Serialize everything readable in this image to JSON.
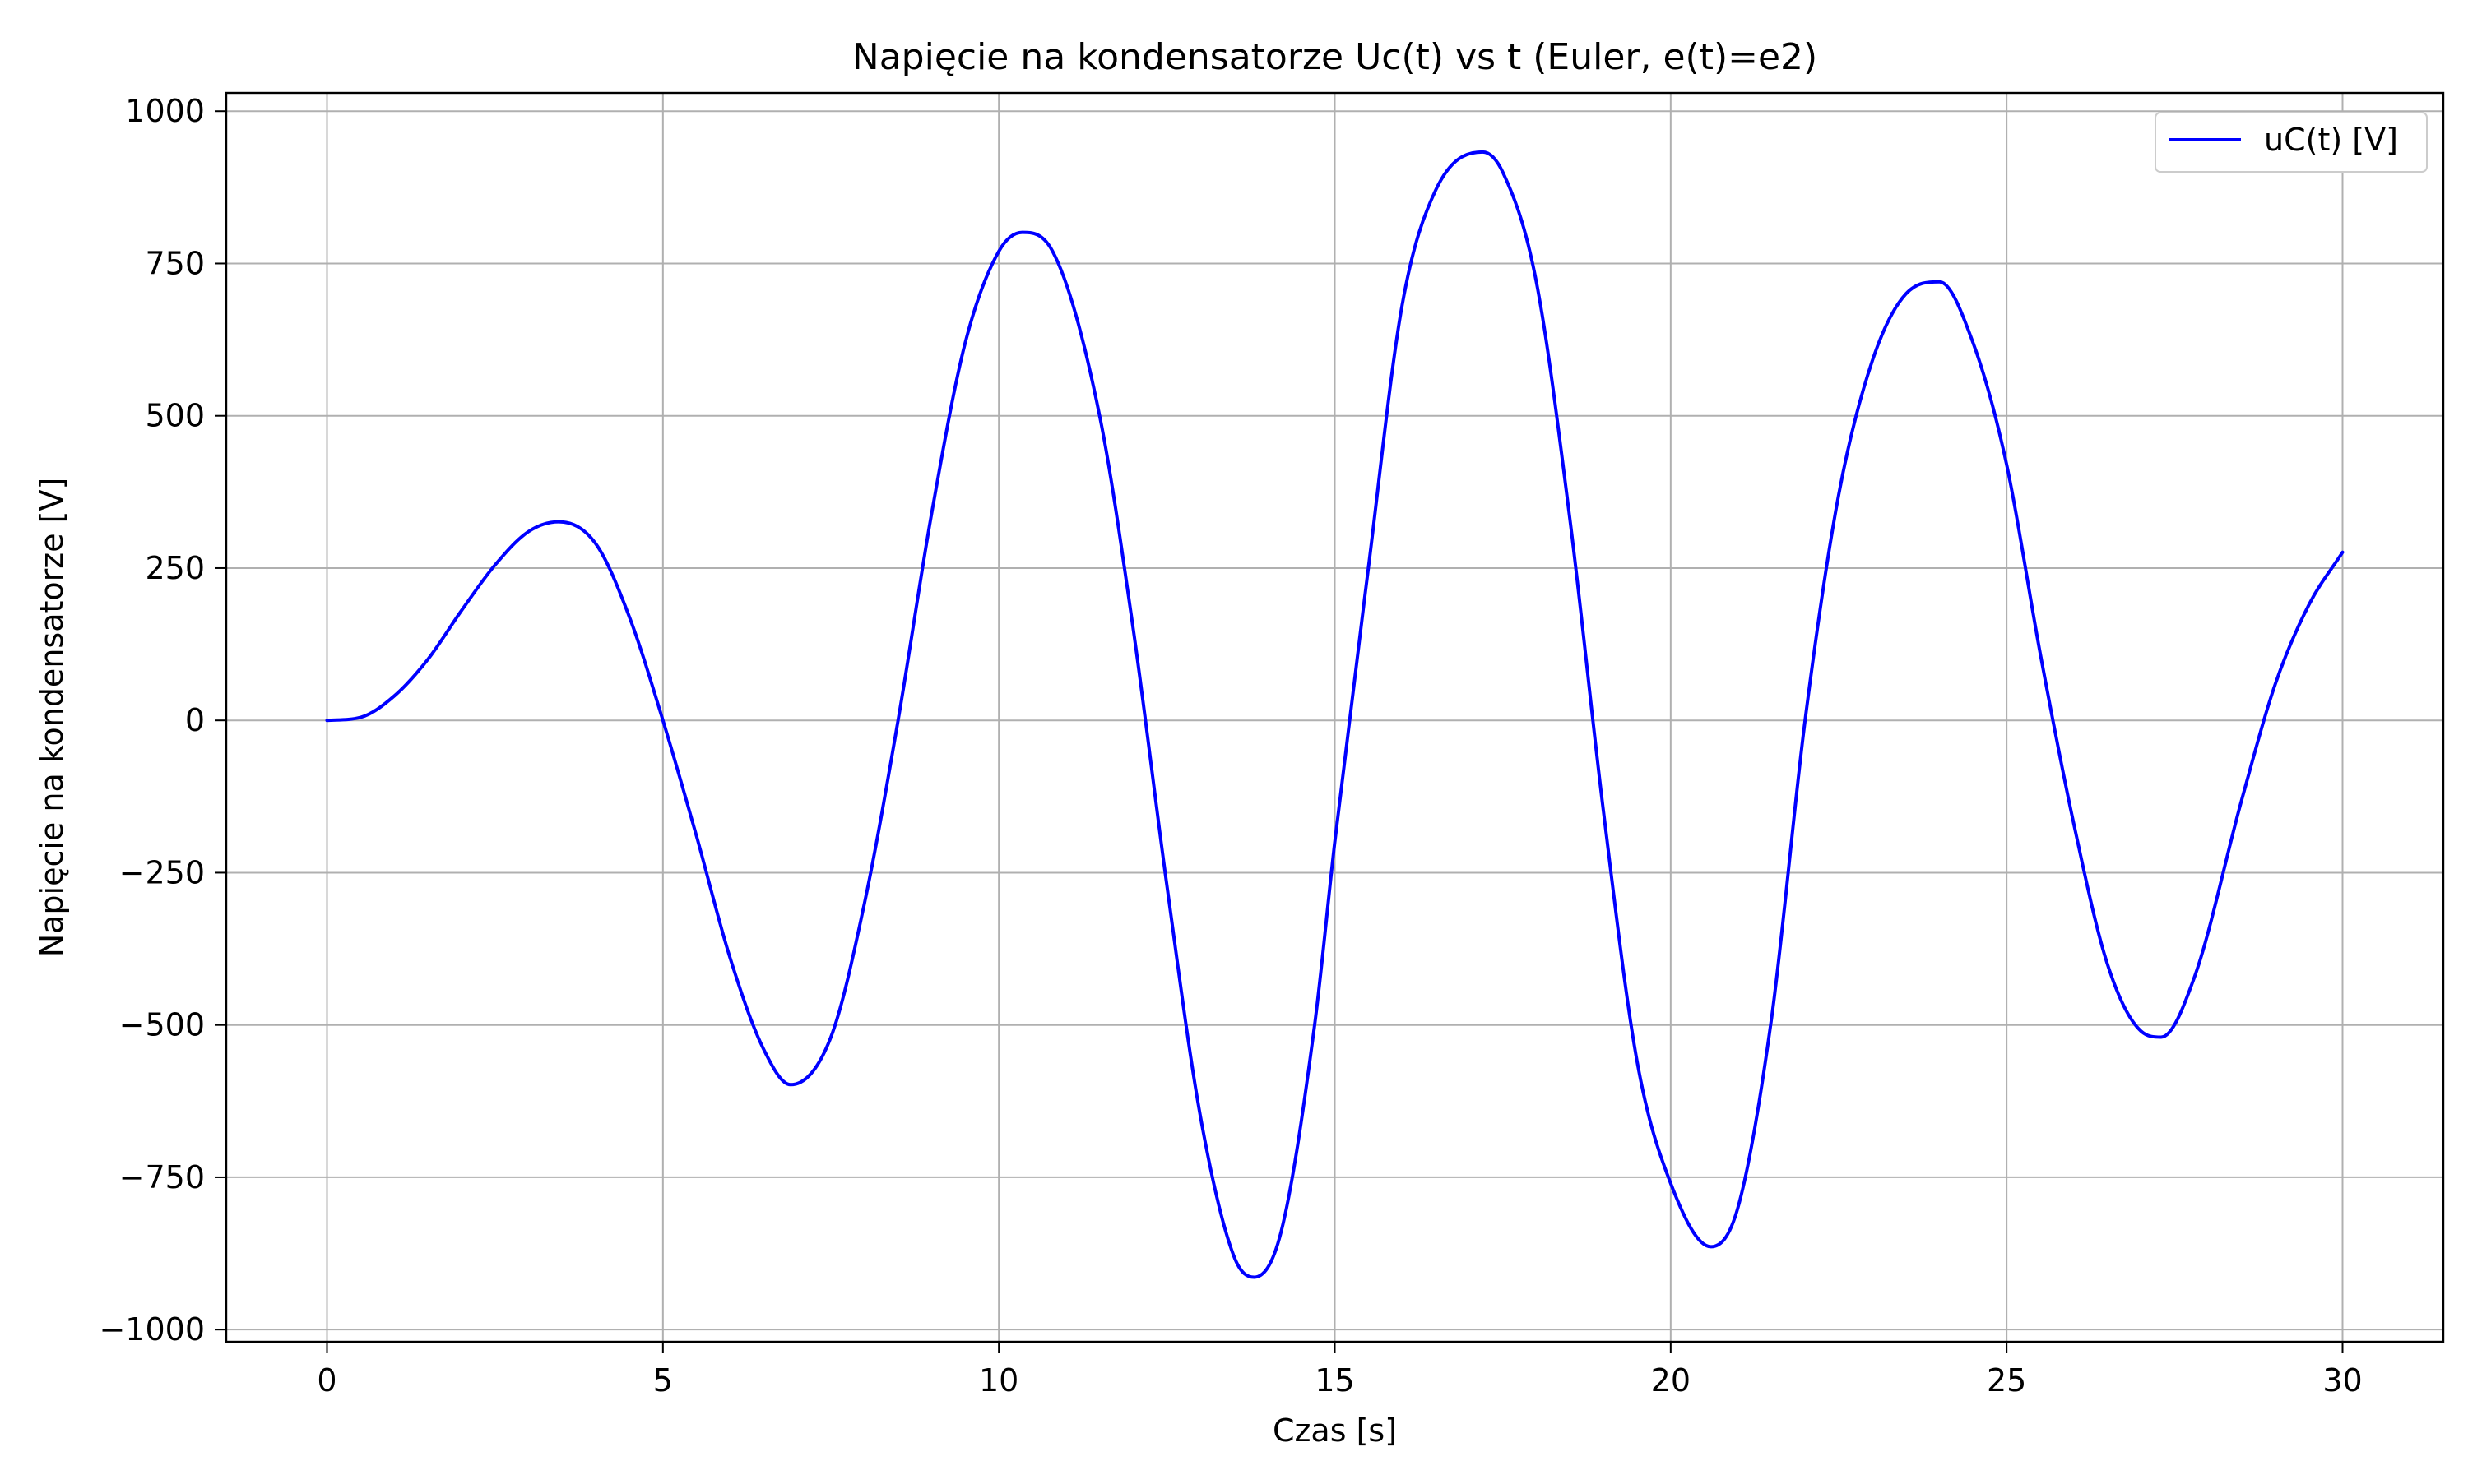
{
  "chart_data": {
    "type": "line",
    "title": "Napięcie na kondensatorze Uc(t) vs t (Euler, e(t)=e2)",
    "xlabel": "Czas [s]",
    "ylabel": "Napięcie na kondensatorze [V]",
    "xlim": [
      -1.5,
      31.5
    ],
    "ylim": [
      -1020,
      1030
    ],
    "xticks": [
      0,
      5,
      10,
      15,
      20,
      25,
      30
    ],
    "xtick_labels": [
      "0",
      "5",
      "10",
      "15",
      "20",
      "25",
      "30"
    ],
    "yticks": [
      -1000,
      -750,
      -500,
      -250,
      0,
      250,
      500,
      750,
      1000
    ],
    "ytick_labels": [
      "−1000",
      "−750",
      "−500",
      "−250",
      "0",
      "250",
      "500",
      "750",
      "1000"
    ],
    "grid": true,
    "legend_position": "top-right",
    "series": [
      {
        "name": "uC(t) [V]",
        "color": "#0000ff",
        "points": [
          [
            0,
            0
          ],
          [
            0.5,
            5
          ],
          [
            1,
            40
          ],
          [
            1.5,
            100
          ],
          [
            2,
            180
          ],
          [
            2.5,
            255
          ],
          [
            3,
            310
          ],
          [
            3.45,
            326
          ],
          [
            4,
            290
          ],
          [
            4.5,
            170
          ],
          [
            5,
            0
          ],
          [
            5.5,
            -190
          ],
          [
            6,
            -390
          ],
          [
            6.5,
            -540
          ],
          [
            6.9,
            -598
          ],
          [
            7.5,
            -520
          ],
          [
            8,
            -300
          ],
          [
            8.5,
            0
          ],
          [
            9,
            340
          ],
          [
            9.5,
            620
          ],
          [
            10,
            770
          ],
          [
            10.35,
            801
          ],
          [
            10.8,
            770
          ],
          [
            11.5,
            500
          ],
          [
            12,
            150
          ],
          [
            12.5,
            -270
          ],
          [
            13,
            -650
          ],
          [
            13.5,
            -880
          ],
          [
            13.8,
            -914
          ],
          [
            14.2,
            -840
          ],
          [
            14.7,
            -500
          ],
          [
            15,
            -200
          ],
          [
            15.5,
            250
          ],
          [
            16,
            680
          ],
          [
            16.5,
            870
          ],
          [
            17.2,
            933
          ],
          [
            17.5,
            900
          ],
          [
            18,
            720
          ],
          [
            18.5,
            330
          ],
          [
            19,
            -150
          ],
          [
            19.5,
            -560
          ],
          [
            20,
            -760
          ],
          [
            20.6,
            -864
          ],
          [
            21,
            -800
          ],
          [
            21.5,
            -490
          ],
          [
            22,
            0
          ],
          [
            22.5,
            370
          ],
          [
            23,
            590
          ],
          [
            23.5,
            700
          ],
          [
            24,
            720
          ],
          [
            24.5,
            620
          ],
          [
            25,
            420
          ],
          [
            25.5,
            110
          ],
          [
            26,
            -170
          ],
          [
            26.5,
            -400
          ],
          [
            27,
            -510
          ],
          [
            27.3,
            -520
          ],
          [
            27.8,
            -420
          ],
          [
            28.5,
            -130
          ],
          [
            29,
            60
          ],
          [
            29.5,
            190
          ],
          [
            30,
            276
          ]
        ]
      }
    ]
  }
}
